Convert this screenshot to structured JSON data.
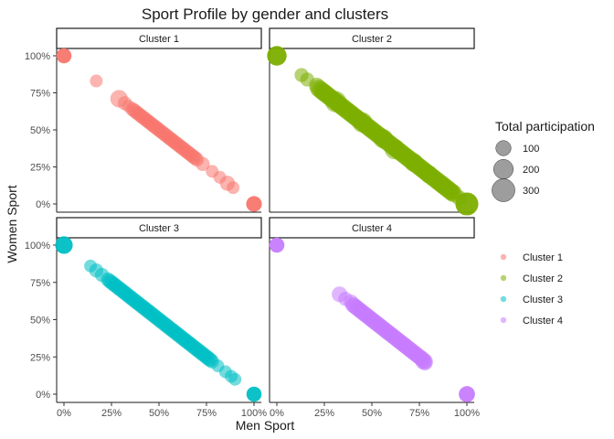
{
  "chart_data": {
    "type": "scatter",
    "title": "Sport Profile by gender and clusters",
    "xlabel": "Men Sport",
    "ylabel": "Women Sport",
    "xlim": [
      0,
      1
    ],
    "ylim": [
      0,
      1
    ],
    "x_ticks": [
      "0%",
      "25%",
      "50%",
      "75%",
      "100%"
    ],
    "y_ticks": [
      "0%",
      "25%",
      "50%",
      "75%",
      "100%"
    ],
    "grid": false,
    "size_legend": {
      "title": "Total participation",
      "entries": [
        {
          "label": "100",
          "value": 100
        },
        {
          "label": "200",
          "value": 200
        },
        {
          "label": "300",
          "value": 300
        }
      ]
    },
    "color_legend": {
      "entries": [
        {
          "label": "Cluster 1",
          "color": "#F8766D"
        },
        {
          "label": "Cluster 2",
          "color": "#7CAE00"
        },
        {
          "label": "Cluster 3",
          "color": "#00BFC4"
        },
        {
          "label": "Cluster 4",
          "color": "#C77CFF"
        }
      ]
    },
    "panels": [
      {
        "label": "Cluster 1",
        "color": "#F8766D",
        "points": [
          {
            "x": 0.0,
            "y": 1.0,
            "size": 100
          },
          {
            "x": 0.17,
            "y": 0.83,
            "size": 60
          },
          {
            "x": 0.29,
            "y": 0.71,
            "size": 150
          },
          {
            "x": 0.32,
            "y": 0.68,
            "size": 80
          },
          {
            "x": 0.34,
            "y": 0.66,
            "size": 60
          },
          {
            "x": 1.0,
            "y": 0.0,
            "size": 110
          },
          {
            "x": 0.82,
            "y": 0.18,
            "size": 60
          },
          {
            "x": 0.86,
            "y": 0.14,
            "size": 100
          },
          {
            "x": 0.89,
            "y": 0.11,
            "size": 60
          },
          {
            "x": 0.78,
            "y": 0.22,
            "size": 60
          },
          {
            "x": 0.73,
            "y": 0.27,
            "size": 80
          }
        ],
        "band": {
          "x_from": 0.36,
          "x_to": 0.7,
          "count": 40,
          "size": 80
        }
      },
      {
        "label": "Cluster 2",
        "color": "#7CAE00",
        "points": [
          {
            "x": 0.0,
            "y": 1.0,
            "size": 200
          },
          {
            "x": 1.0,
            "y": 0.0,
            "size": 300
          },
          {
            "x": 0.13,
            "y": 0.87,
            "size": 80
          },
          {
            "x": 0.16,
            "y": 0.84,
            "size": 80
          },
          {
            "x": 0.21,
            "y": 0.8,
            "size": 110
          },
          {
            "x": 0.25,
            "y": 0.75,
            "size": 150
          },
          {
            "x": 0.31,
            "y": 0.69,
            "size": 250
          },
          {
            "x": 0.45,
            "y": 0.55,
            "size": 220
          },
          {
            "x": 0.56,
            "y": 0.44,
            "size": 200
          },
          {
            "x": 0.62,
            "y": 0.37,
            "size": 220
          },
          {
            "x": 0.72,
            "y": 0.28,
            "size": 180
          },
          {
            "x": 0.8,
            "y": 0.2,
            "size": 160
          },
          {
            "x": 0.87,
            "y": 0.13,
            "size": 140
          },
          {
            "x": 0.92,
            "y": 0.08,
            "size": 120
          },
          {
            "x": 0.96,
            "y": 0.04,
            "size": 100
          }
        ],
        "band": {
          "x_from": 0.22,
          "x_to": 0.93,
          "count": 80,
          "size": 150
        }
      },
      {
        "label": "Cluster 3",
        "color": "#00BFC4",
        "points": [
          {
            "x": 0.0,
            "y": 1.0,
            "size": 150
          },
          {
            "x": 1.0,
            "y": 0.0,
            "size": 100
          },
          {
            "x": 0.14,
            "y": 0.86,
            "size": 60
          },
          {
            "x": 0.17,
            "y": 0.83,
            "size": 80
          },
          {
            "x": 0.2,
            "y": 0.8,
            "size": 80
          },
          {
            "x": 0.23,
            "y": 0.77,
            "size": 80
          },
          {
            "x": 0.78,
            "y": 0.22,
            "size": 80
          },
          {
            "x": 0.81,
            "y": 0.19,
            "size": 60
          },
          {
            "x": 0.85,
            "y": 0.15,
            "size": 60
          },
          {
            "x": 0.88,
            "y": 0.12,
            "size": 60
          },
          {
            "x": 0.9,
            "y": 0.1,
            "size": 60
          }
        ],
        "band": {
          "x_from": 0.24,
          "x_to": 0.77,
          "count": 60,
          "size": 90
        }
      },
      {
        "label": "Cluster 4",
        "color": "#C77CFF",
        "points": [
          {
            "x": 0.0,
            "y": 1.0,
            "size": 100
          },
          {
            "x": 1.0,
            "y": 0.0,
            "size": 120
          },
          {
            "x": 0.33,
            "y": 0.67,
            "size": 110
          },
          {
            "x": 0.36,
            "y": 0.64,
            "size": 80
          },
          {
            "x": 0.39,
            "y": 0.62,
            "size": 90
          },
          {
            "x": 0.77,
            "y": 0.22,
            "size": 120
          },
          {
            "x": 0.78,
            "y": 0.21,
            "size": 100
          }
        ],
        "band": {
          "x_from": 0.4,
          "x_to": 0.78,
          "count": 50,
          "size": 110
        }
      }
    ]
  }
}
